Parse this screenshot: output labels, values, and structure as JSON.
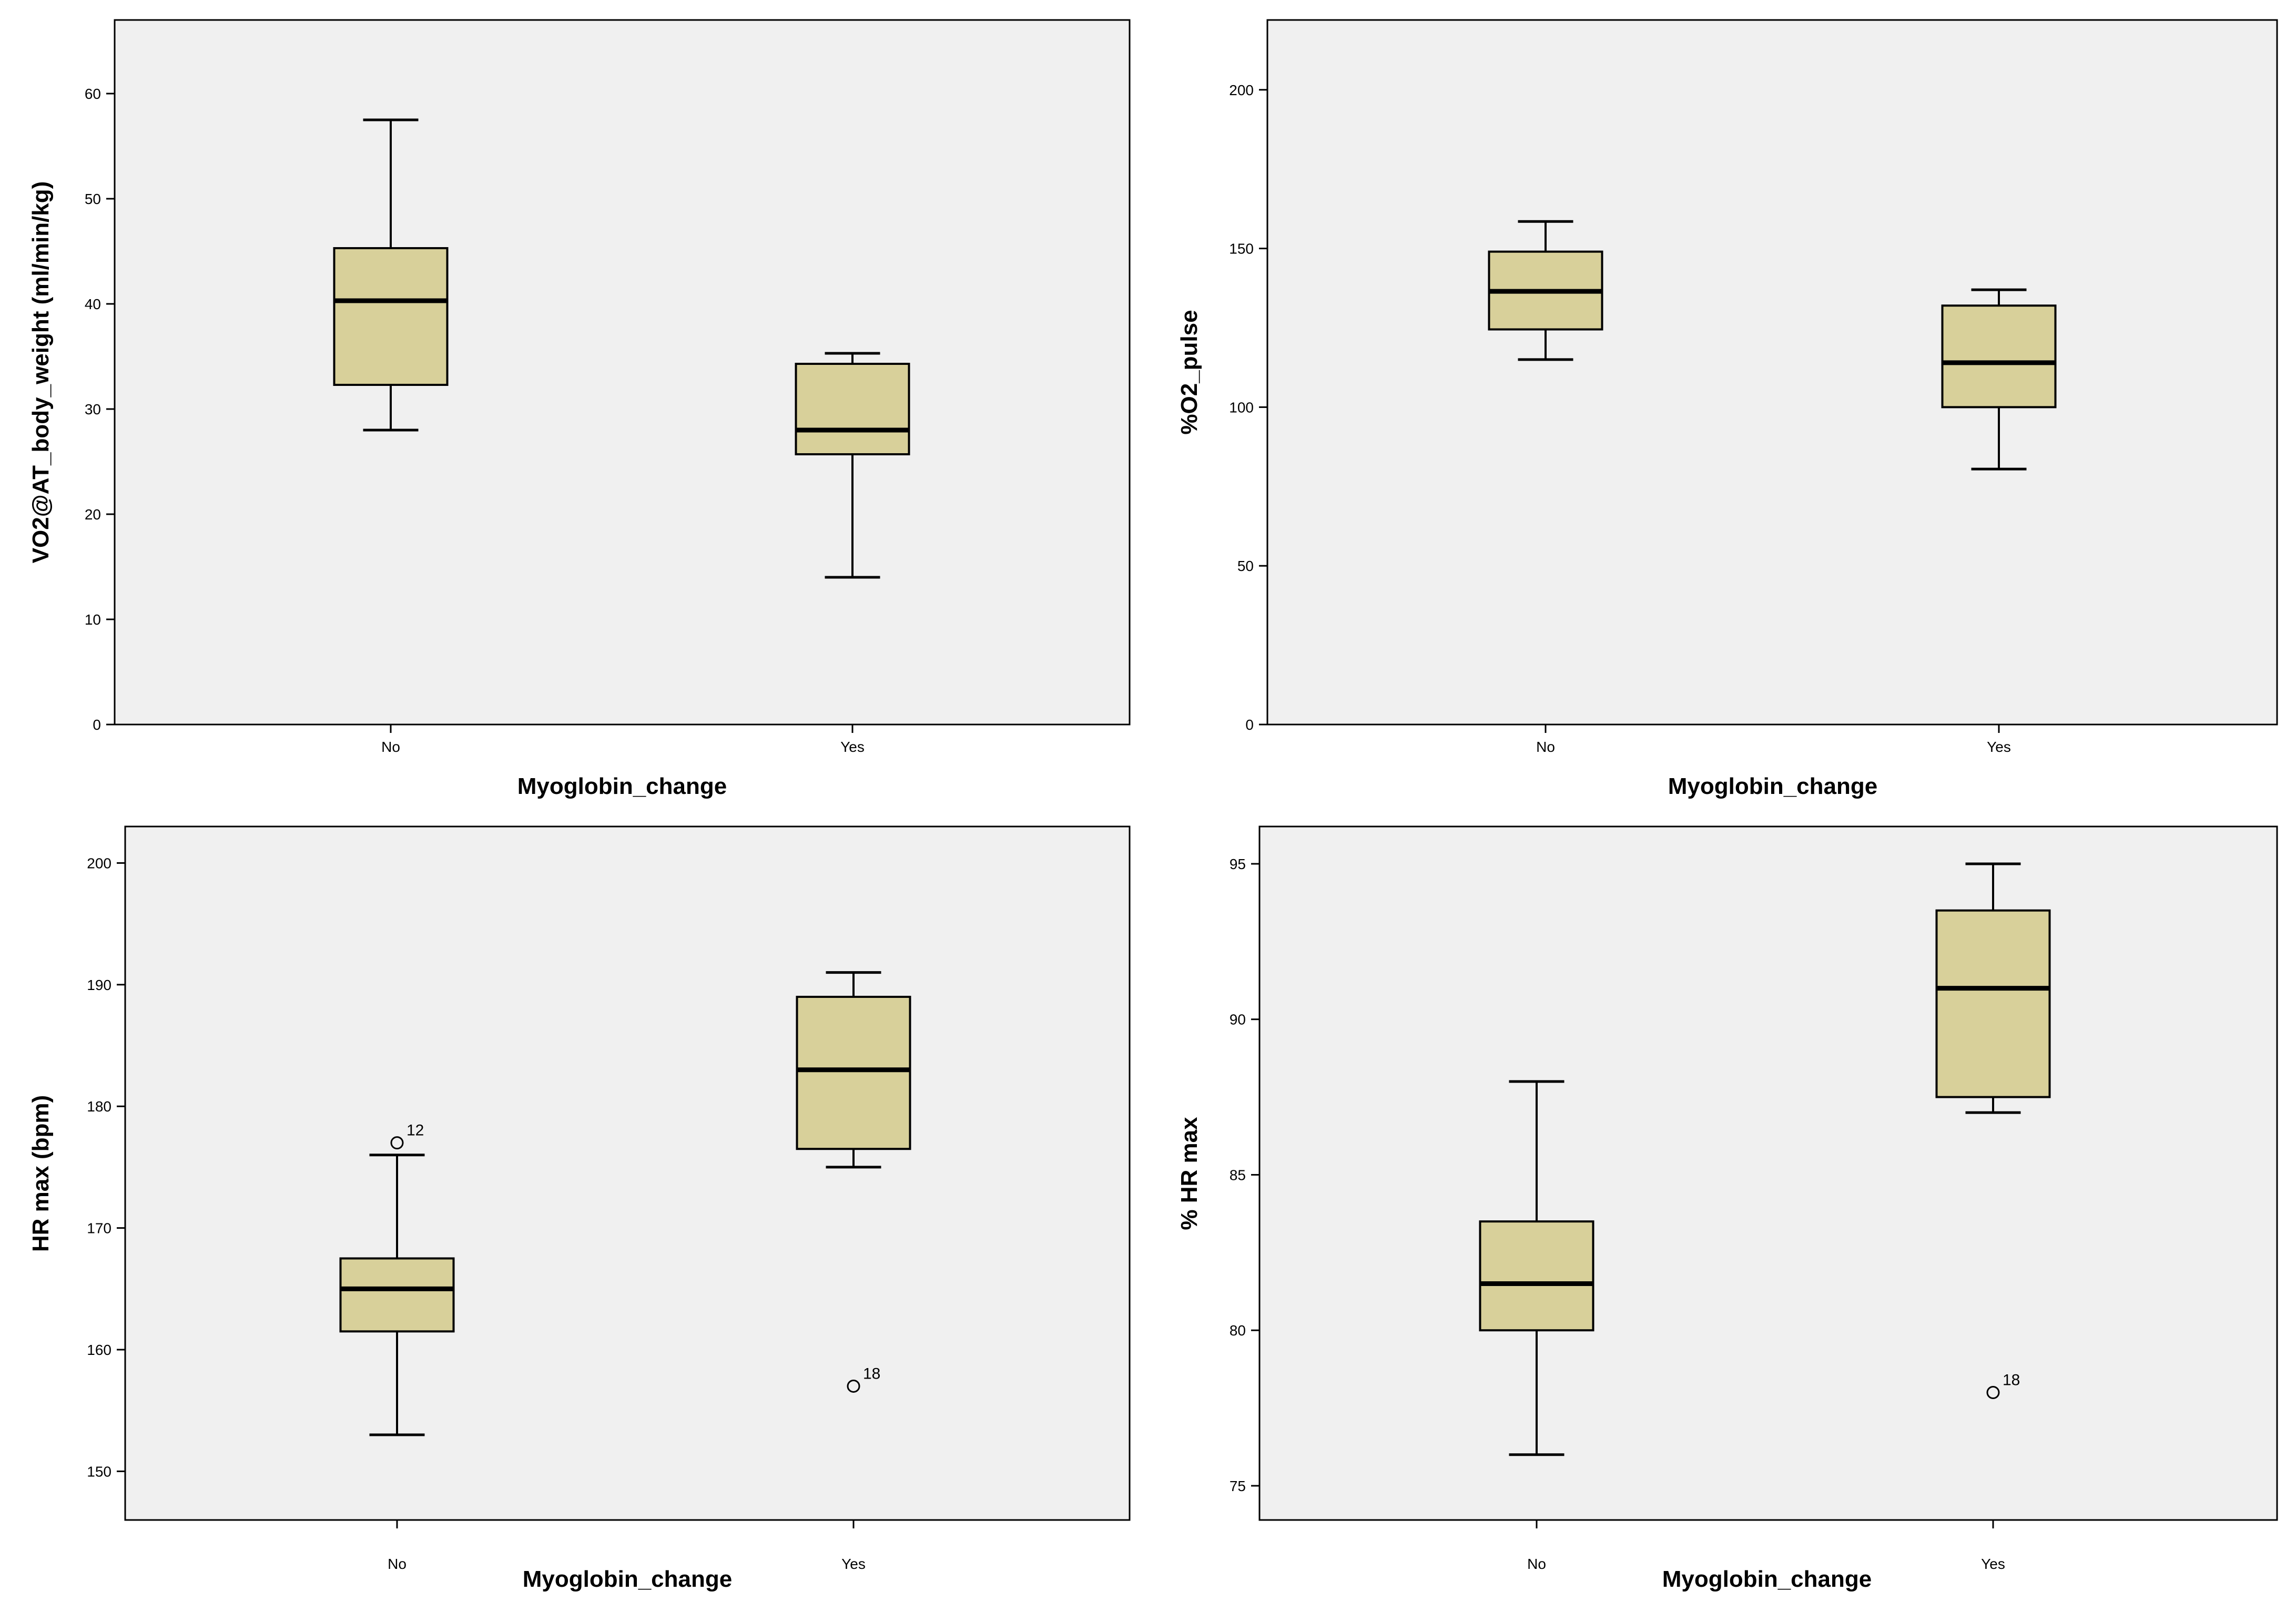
{
  "colors": {
    "plot_background": "#f0f0f0",
    "box_fill": "#d8d09a",
    "line": "#000000",
    "page_background": "#ffffff"
  },
  "chart_data": [
    {
      "type": "boxplot",
      "xlabel": "Myoglobin_change",
      "ylabel": "VO2@AT_body_weight (ml/min/kg)",
      "categories": [
        "No",
        "Yes"
      ],
      "ylim": [
        0,
        67
      ],
      "yticks": [
        0,
        10,
        20,
        30,
        40,
        50,
        60
      ],
      "yticklabels": [
        "0",
        "10",
        "20",
        "30",
        "40",
        "50",
        "60"
      ],
      "boxes": [
        {
          "category": "No",
          "whisker_low": 28,
          "q1": 32.3,
          "median": 40.3,
          "q3": 45.3,
          "whisker_high": 57.5,
          "outliers": []
        },
        {
          "category": "Yes",
          "whisker_low": 14,
          "q1": 25.7,
          "median": 28,
          "q3": 34.3,
          "whisker_high": 35.3,
          "outliers": []
        }
      ]
    },
    {
      "type": "boxplot",
      "xlabel": "Myoglobin_change",
      "ylabel": "%O2_pulse",
      "categories": [
        "No",
        "Yes"
      ],
      "ylim": [
        0,
        222
      ],
      "yticks": [
        0,
        50,
        100,
        150,
        200
      ],
      "yticklabels": [
        "0",
        "50",
        "100",
        "150",
        "200"
      ],
      "boxes": [
        {
          "category": "No",
          "whisker_low": 115,
          "q1": 124.5,
          "median": 136.5,
          "q3": 149,
          "whisker_high": 158.5,
          "outliers": []
        },
        {
          "category": "Yes",
          "whisker_low": 80.5,
          "q1": 100,
          "median": 114,
          "q3": 132,
          "whisker_high": 137,
          "outliers": []
        }
      ]
    },
    {
      "type": "boxplot",
      "xlabel": "Myoglobin_change",
      "ylabel": "HR max (bpm)",
      "categories": [
        "No",
        "Yes"
      ],
      "ylim": [
        146,
        203
      ],
      "yticks": [
        150,
        160,
        170,
        180,
        190,
        200
      ],
      "yticklabels": [
        "150",
        "160",
        "170",
        "180",
        "190",
        "200"
      ],
      "boxes": [
        {
          "category": "No",
          "whisker_low": 153,
          "q1": 161.5,
          "median": 165,
          "q3": 167.5,
          "whisker_high": 176,
          "outliers": [
            {
              "value": 177,
              "label": "12"
            }
          ]
        },
        {
          "category": "Yes",
          "whisker_low": 175,
          "q1": 176.5,
          "median": 183,
          "q3": 189,
          "whisker_high": 191,
          "outliers": [
            {
              "value": 157,
              "label": "18"
            }
          ]
        }
      ]
    },
    {
      "type": "boxplot",
      "xlabel": "Myoglobin_change",
      "ylabel": "% HR max",
      "categories": [
        "No",
        "Yes"
      ],
      "ylim": [
        73.9,
        96.2
      ],
      "yticks": [
        75,
        80,
        85,
        90,
        95
      ],
      "yticklabels": [
        "75",
        "80",
        "85",
        "90",
        "95"
      ],
      "boxes": [
        {
          "category": "No",
          "whisker_low": 76,
          "q1": 80,
          "median": 81.5,
          "q3": 83.5,
          "whisker_high": 88,
          "outliers": []
        },
        {
          "category": "Yes",
          "whisker_low": 87,
          "q1": 87.5,
          "median": 91,
          "q3": 93.5,
          "whisker_high": 95,
          "outliers": [
            {
              "value": 78,
              "label": "18"
            }
          ]
        }
      ]
    }
  ]
}
